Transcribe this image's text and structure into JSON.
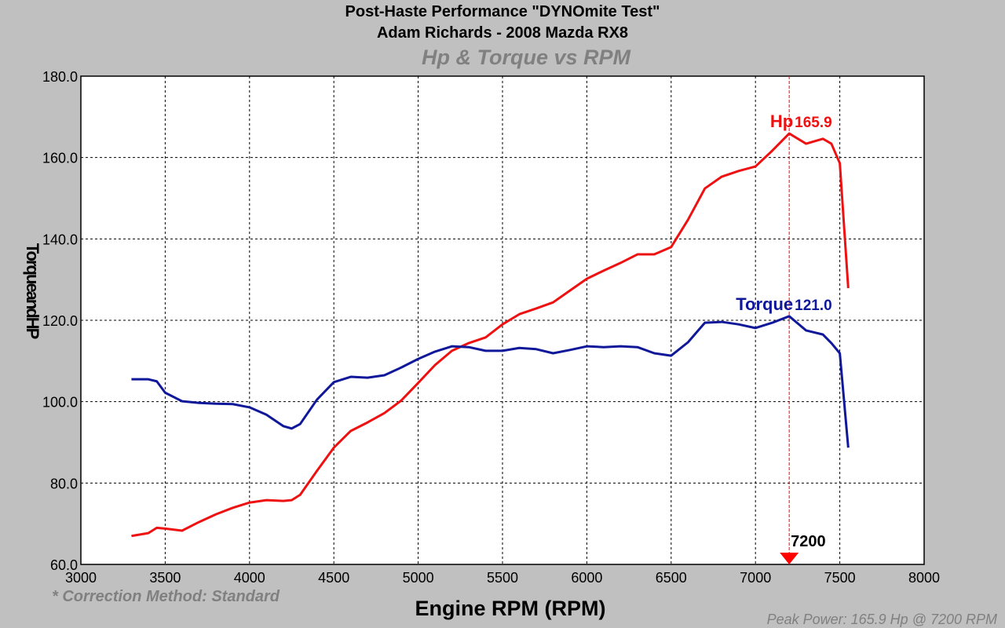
{
  "chart_data": {
    "type": "line",
    "title": "Post-Haste Performance \"DYNOmite Test\"",
    "subtitle": "Adam Richards - 2008 Mazda RX8",
    "chart_title": "Hp & Torque vs RPM",
    "x_label": "Engine RPM (RPM)",
    "y_label": "TorqueandHP",
    "note": "* Correction Method: Standard",
    "footer": "Peak Power: 165.9 Hp @ 7200 RPM",
    "grid": true,
    "xlim": [
      3000,
      8000
    ],
    "xticks": [
      3000,
      3500,
      4000,
      4500,
      5000,
      5500,
      6000,
      6500,
      7000,
      7500,
      8000
    ],
    "ylim": [
      60,
      180
    ],
    "yticks": [
      {
        "value": 60,
        "label": "60.0"
      },
      {
        "value": 80,
        "label": "80.0"
      },
      {
        "value": 100,
        "label": "100.0"
      },
      {
        "value": 120,
        "label": "120.0"
      },
      {
        "value": 140,
        "label": "140.0"
      },
      {
        "value": 160,
        "label": "160.0"
      },
      {
        "value": 180,
        "label": "180.0"
      }
    ],
    "marker": {
      "x": 7200,
      "label": "7200",
      "color": "#ff0000"
    },
    "x": [
      3300,
      3400,
      3450,
      3500,
      3600,
      3700,
      3800,
      3900,
      4000,
      4100,
      4200,
      4250,
      4300,
      4400,
      4500,
      4600,
      4700,
      4800,
      4900,
      5000,
      5100,
      5200,
      5300,
      5400,
      5500,
      5600,
      5700,
      5800,
      5900,
      6000,
      6100,
      6200,
      6300,
      6400,
      6500,
      6600,
      6700,
      6800,
      6900,
      7000,
      7100,
      7200,
      7300,
      7400,
      7450,
      7500,
      7550
    ],
    "series": [
      {
        "name": "Hp",
        "color": "#ee1111",
        "peak_label": "165.9",
        "values": [
          67.0,
          67.7,
          69,
          68.8,
          68.3,
          70.4,
          72.3,
          73.9,
          75.2,
          75.8,
          75.6,
          75.8,
          77.1,
          83,
          88.7,
          92.8,
          94.9,
          97.2,
          100.3,
          104.6,
          109,
          112.5,
          114.4,
          115.8,
          119.0,
          121.5,
          122.9,
          124.4,
          127.3,
          130.2,
          132.2,
          134.1,
          136.2,
          136.2,
          138,
          144.7,
          152.4,
          155.3,
          156.7,
          157.8,
          161.7,
          165.9,
          163.4,
          164.6,
          163.4,
          158.6,
          127.9
        ]
      },
      {
        "name": "Torque",
        "color": "#10189a",
        "peak_label": "121.0",
        "values": [
          105.5,
          105.5,
          105,
          102.2,
          100.1,
          99.7,
          99.5,
          99.4,
          98.6,
          96.8,
          94,
          93.4,
          94.5,
          100.5,
          104.8,
          106.1,
          105.9,
          106.5,
          108.4,
          110.5,
          112.3,
          113.6,
          113.4,
          112.5,
          112.5,
          113.2,
          112.9,
          111.9,
          112.7,
          113.6,
          113.4,
          113.6,
          113.4,
          111.9,
          111.3,
          114.6,
          119.4,
          119.6,
          119.0,
          118.1,
          119.4,
          121.0,
          117.5,
          116.5,
          114.4,
          111.9,
          88.7
        ]
      }
    ]
  }
}
